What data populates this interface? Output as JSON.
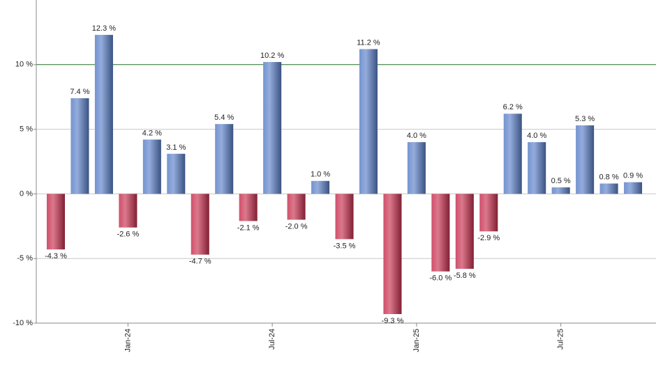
{
  "chart_data": {
    "type": "bar",
    "categories": [
      null,
      null,
      null,
      "Jan-24",
      null,
      null,
      null,
      null,
      null,
      "Jul-24",
      null,
      null,
      null,
      null,
      null,
      "Jan-25",
      null,
      null,
      null,
      null,
      null,
      "Jul-25",
      null,
      null,
      null
    ],
    "values": [
      -4.3,
      7.4,
      12.3,
      -2.6,
      4.2,
      3.1,
      -4.7,
      5.4,
      -2.1,
      10.2,
      -2.0,
      1.0,
      -3.5,
      11.2,
      -9.3,
      4.0,
      -6.0,
      -5.8,
      -2.9,
      6.2,
      4.0,
      0.5,
      5.3,
      0.8,
      0.9
    ],
    "value_labels": [
      "-4.3 %",
      "7.4 %",
      "12.3 %",
      "-2.6 %",
      "4.2 %",
      "3.1 %",
      "-4.7 %",
      "5.4 %",
      "-2.1 %",
      "10.2 %",
      "-2.0 %",
      "1.0 %",
      "-3.5 %",
      "11.2 %",
      "-9.3 %",
      "4.0 %",
      "-6.0 %",
      "-5.8 %",
      "-2.9 %",
      "6.2 %",
      "4.0 %",
      "0.5 %",
      "5.3 %",
      "0.8 %",
      "0.9 %"
    ],
    "positive_color": "#5b80c8",
    "negative_color": "#c8304f",
    "ylim": [
      -10,
      15
    ],
    "yticks": [
      {
        "value": -10,
        "label": "-10 %"
      },
      {
        "value": -5,
        "label": "-5 %"
      },
      {
        "value": 0,
        "label": "0 %"
      },
      {
        "value": 5,
        "label": "5 %"
      },
      {
        "value": 10,
        "label": "10 %"
      }
    ],
    "grid": true,
    "reference_line": {
      "value": 10,
      "color": "#2e7d32"
    }
  }
}
